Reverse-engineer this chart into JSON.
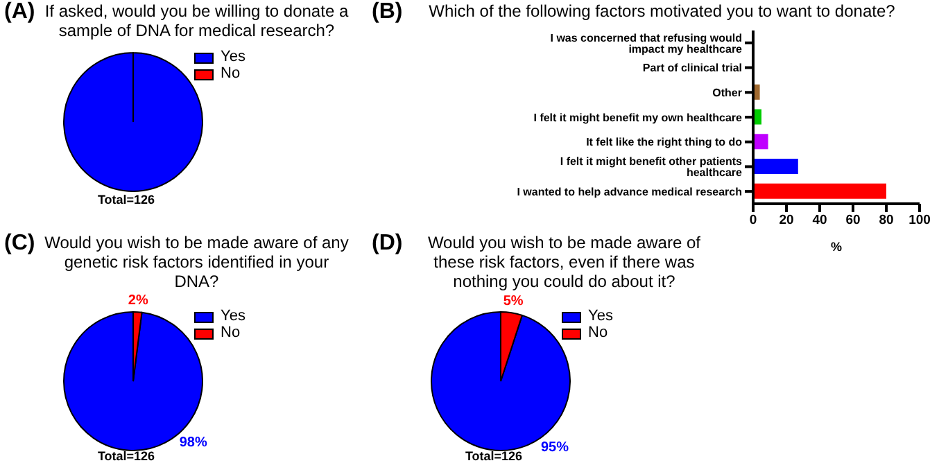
{
  "chart_data": [
    {
      "type": "pie",
      "title": "(A) If asked, would you be willing to donate a sample of DNA for medical research?",
      "categories": [
        "Yes",
        "No"
      ],
      "values": [
        100,
        0
      ],
      "colors": [
        "#0000ff",
        "#ff0000"
      ],
      "legend": "top right",
      "annotations": [
        "Total=126"
      ]
    },
    {
      "type": "bar",
      "orientation": "horizontal",
      "title": "(B) Which of the following factors motivated you to want to donate?",
      "categories": [
        "I was concerned that refusing would impact my healthcare",
        "Part of clinical trial",
        "Other",
        "I felt it might benefit my own healthcare",
        "It felt like the right thing to do",
        "I felt it might benefit other patients healthcare",
        "I wanted to help advance medical research"
      ],
      "values": [
        0,
        0,
        4,
        5,
        9,
        27,
        80
      ],
      "colors": [
        "#000000",
        "#000000",
        "#a0692f",
        "#00cc00",
        "#bf00ff",
        "#0000ff",
        "#ff0000"
      ],
      "xlim": [
        0,
        100
      ],
      "xticks": [
        0,
        20,
        40,
        60,
        80,
        100
      ],
      "xlabel": "%",
      "grid": false
    },
    {
      "type": "pie",
      "title": "(C) Would you wish to be made aware of any genetic risk factors identified in your DNA?",
      "categories": [
        "Yes",
        "No"
      ],
      "values": [
        98,
        2
      ],
      "colors": [
        "#0000ff",
        "#ff0000"
      ],
      "value_labels": [
        "98%",
        "2%"
      ],
      "legend": "top right",
      "annotations": [
        "Total=126"
      ]
    },
    {
      "type": "pie",
      "title": "(D) Would you wish to be made aware of these risk factors, even if there was nothing you could do about it?",
      "categories": [
        "Yes",
        "No"
      ],
      "values": [
        95,
        5
      ],
      "colors": [
        "#0000ff",
        "#ff0000"
      ],
      "value_labels": [
        "95%",
        "5%"
      ],
      "legend": "top right",
      "annotations": [
        "Total=126"
      ]
    }
  ]
}
